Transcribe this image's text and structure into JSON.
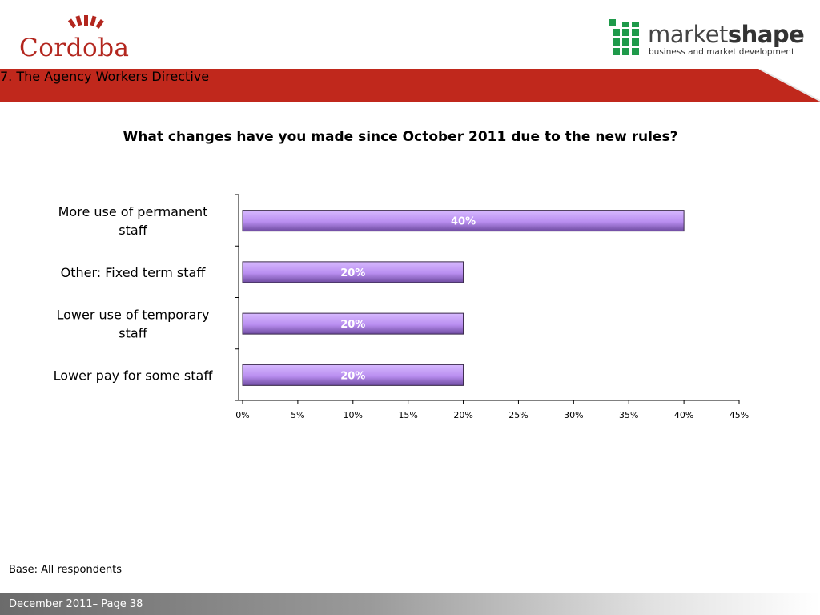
{
  "header": {
    "brand_left": "Cordoba",
    "brand_right_light": "market",
    "brand_right_bold": "shape",
    "brand_right_tagline": "business and market development",
    "section_title": "7.  The Agency Workers Directive"
  },
  "colors": {
    "banner": "#c0281c",
    "bar": "#b98ef0",
    "bar_edge": "#3a2a4a",
    "logo_green": "#1f9a4a"
  },
  "chart_data": {
    "type": "bar",
    "orientation": "horizontal",
    "title": "What changes have you made since October 2011 due to the new rules?",
    "categories": [
      [
        "More use of permanent",
        "staff"
      ],
      [
        "Other: Fixed term staff"
      ],
      [
        "Lower use of temporary",
        "staff"
      ],
      [
        "Lower pay for some staff"
      ]
    ],
    "values": [
      40,
      20,
      20,
      20
    ],
    "data_labels": [
      "40%",
      "20%",
      "20%",
      "20%"
    ],
    "xlim": [
      0,
      45
    ],
    "x_ticks": [
      "0%",
      "5%",
      "10%",
      "15%",
      "20%",
      "25%",
      "30%",
      "35%",
      "40%",
      "45%"
    ],
    "grid": false,
    "legend": "none"
  },
  "footer": {
    "base_note": "Base: All respondents",
    "page_label": "December 2011– Page 38"
  }
}
